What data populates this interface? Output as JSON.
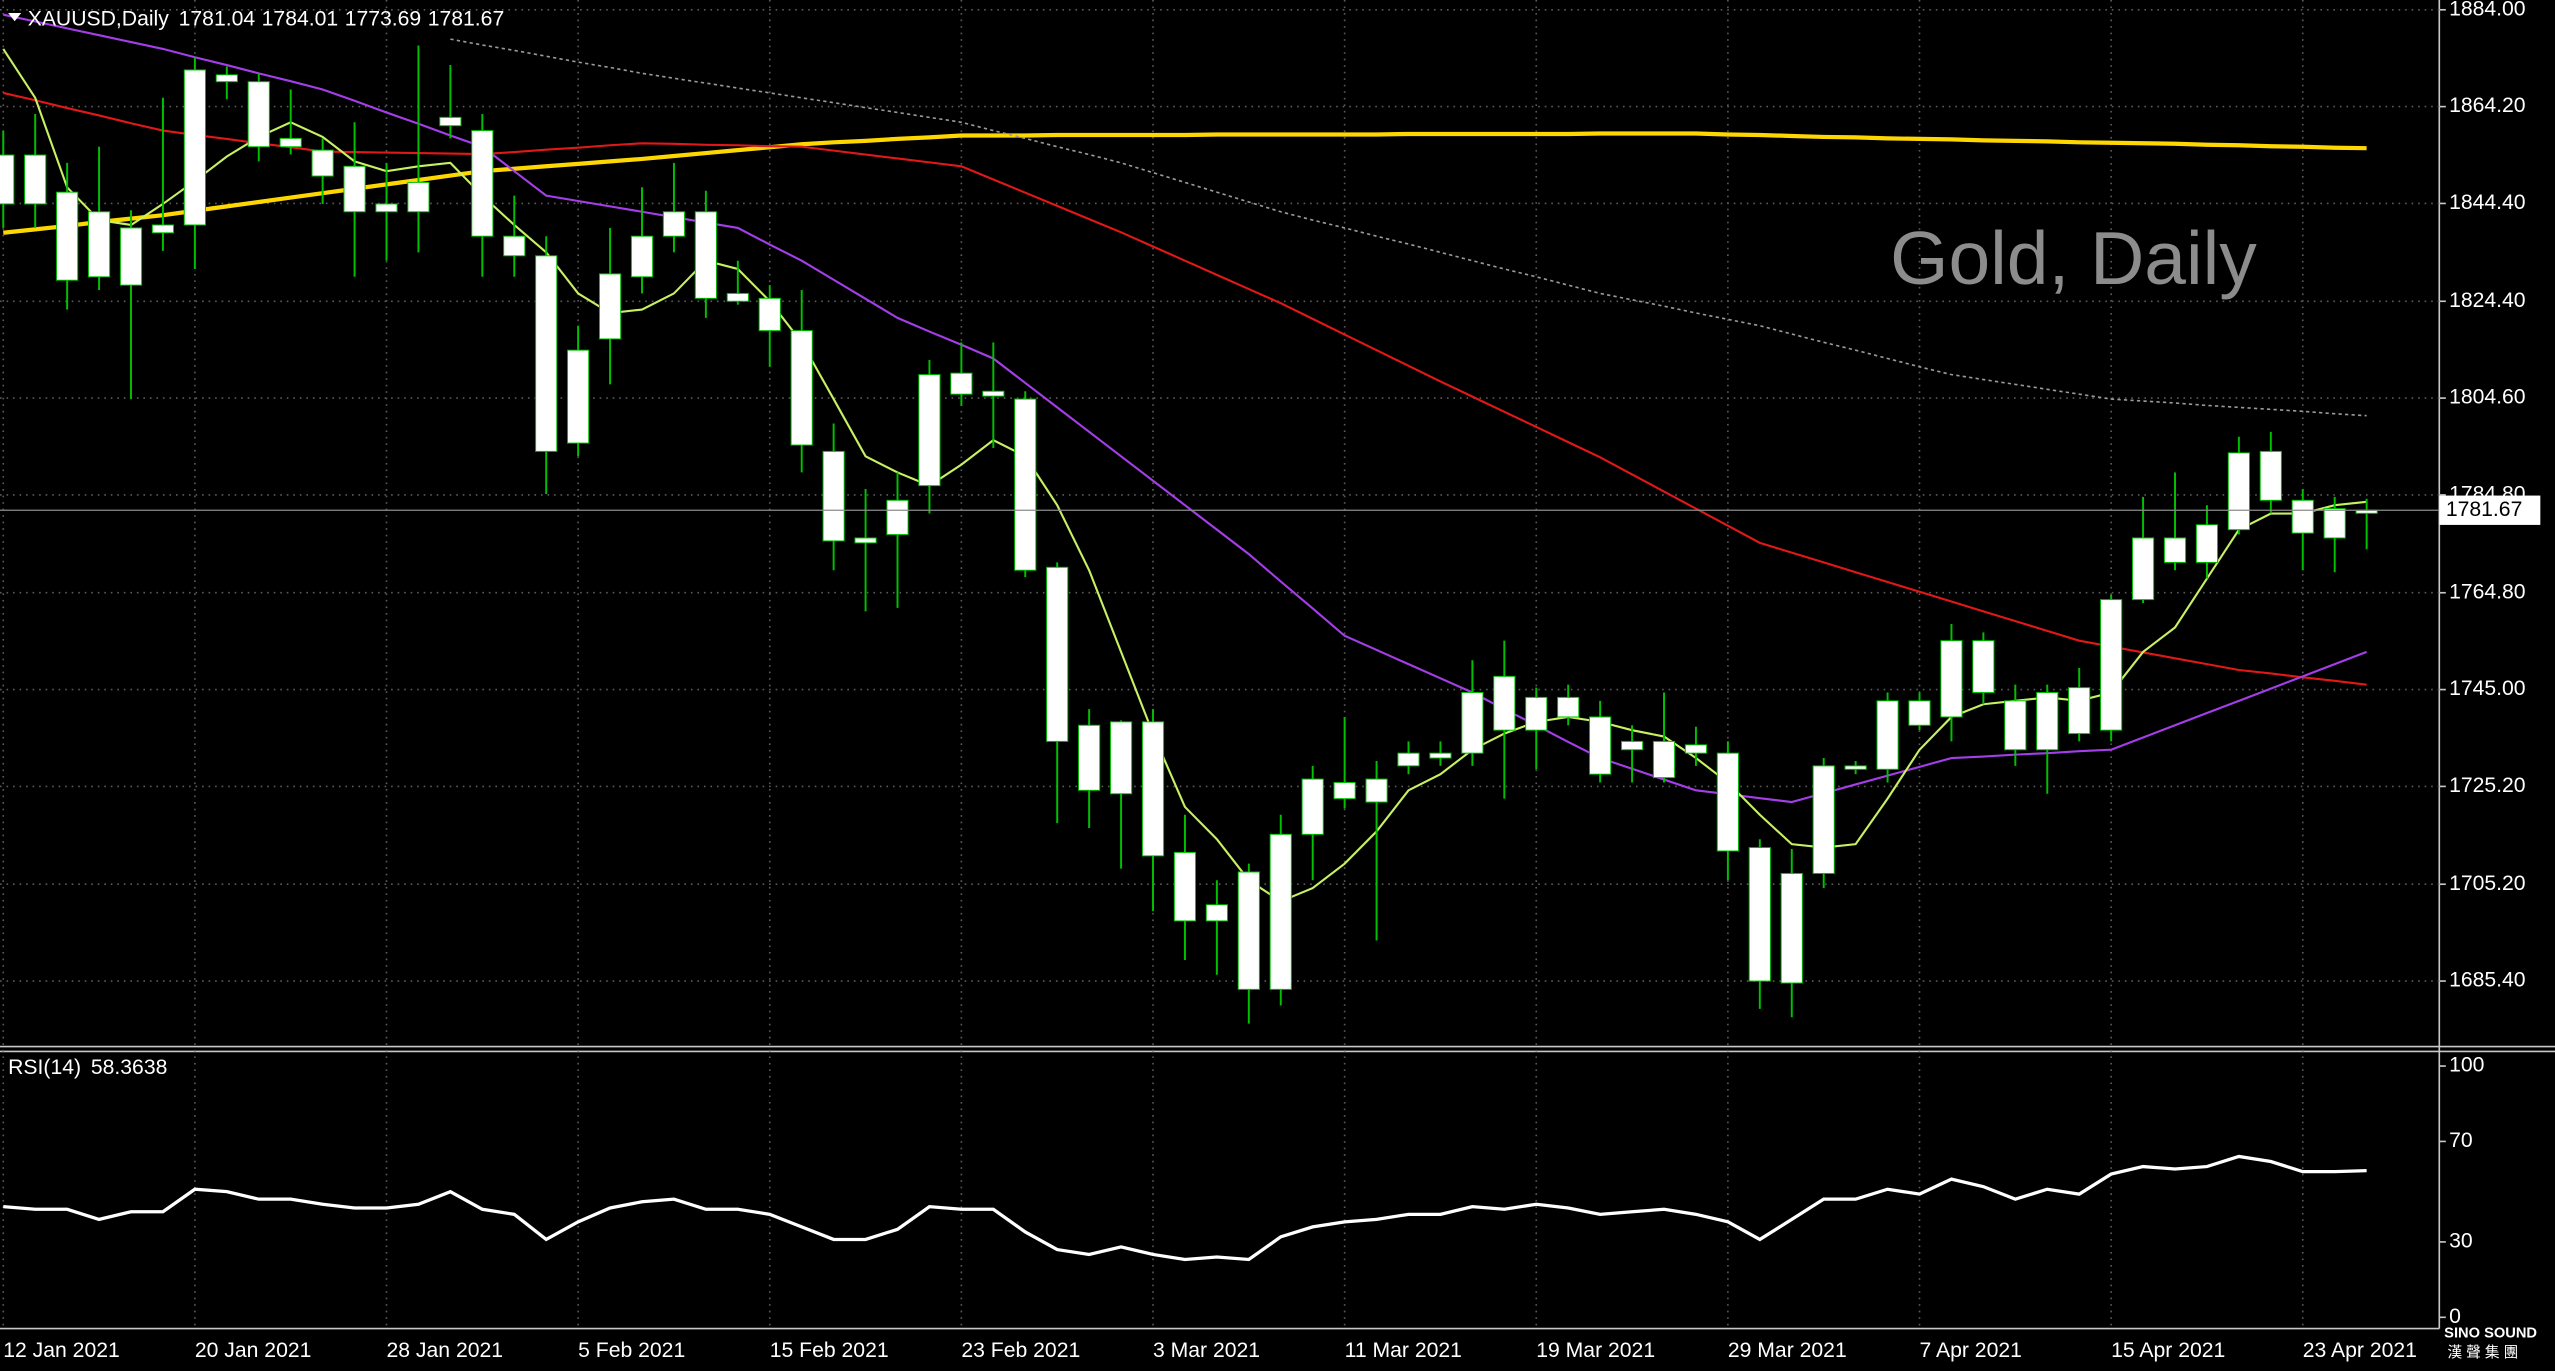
{
  "chart_data": [
    {
      "type": "candlestick",
      "title": "Gold, Daily",
      "symbol": "XAUUSD,Daily",
      "categories": [
        "12 Jan 2021",
        null,
        null,
        null,
        null,
        null,
        "20 Jan 2021",
        null,
        null,
        null,
        null,
        null,
        "28 Jan 2021",
        null,
        null,
        null,
        null,
        null,
        "5 Feb 2021",
        null,
        null,
        null,
        null,
        null,
        "15 Feb 2021",
        null,
        null,
        null,
        null,
        null,
        "23 Feb 2021",
        null,
        null,
        null,
        null,
        null,
        "3 Mar 2021",
        null,
        null,
        null,
        null,
        null,
        "11 Mar 2021",
        null,
        null,
        null,
        null,
        null,
        "19 Mar 2021",
        null,
        null,
        null,
        null,
        null,
        "29 Mar 2021",
        null,
        null,
        null,
        null,
        null,
        "7 Apr 2021",
        null,
        null,
        null,
        null,
        null,
        "15 Apr 2021",
        null,
        null,
        null,
        null,
        null,
        "23 Apr 2021",
        null,
        null
      ],
      "open": [
        1844.3,
        1854.3,
        1846.7,
        1829.4,
        1839.4,
        1838.4,
        1840,
        1869.3,
        1869.3,
        1856,
        1855.3,
        1852,
        1844.3,
        1842.7,
        1860.3,
        1859.3,
        1837.7,
        1833.7,
        1795.4,
        1816.7,
        1829.4,
        1837.7,
        1842.7,
        1826,
        1825,
        1818.4,
        1793.7,
        1775,
        1776.7,
        1786.7,
        1809.7,
        1806,
        1804.4,
        1770,
        1737.7,
        1723.7,
        1738.4,
        1711.7,
        1697.7,
        1707.7,
        1683.7,
        1715.4,
        1726,
        1722,
        1729.4,
        1731,
        1732,
        1747.7,
        1736.7,
        1743.4,
        1739.4,
        1732.7,
        1734.4,
        1732,
        1732,
        1712.7,
        1685,
        1707.4,
        1728.7,
        1728.7,
        1742.7,
        1739.4,
        1755,
        1742.7,
        1732.7,
        1745.4,
        1736.7,
        1763.4,
        1771,
        1771,
        1777.7,
        1793.7,
        1783.7,
        1776,
        1781.04
      ],
      "high": [
        1859.3,
        1862.7,
        1852.7,
        1856,
        1843,
        1866,
        1874.4,
        1872.4,
        1871,
        1867.7,
        1857.7,
        1861,
        1852.7,
        1876.7,
        1872.7,
        1862.7,
        1846,
        1837.7,
        1819.4,
        1839.4,
        1847.7,
        1852.7,
        1847,
        1832.7,
        1827.7,
        1826.7,
        1799.4,
        1786,
        1789.4,
        1812.4,
        1816,
        1816,
        1806,
        1771,
        1741,
        1738.7,
        1741,
        1719.4,
        1706,
        1709.4,
        1719.4,
        1729.4,
        1739.4,
        1730.4,
        1734.4,
        1734.4,
        1751,
        1755,
        1745.4,
        1746,
        1742.7,
        1737.7,
        1744.4,
        1737.4,
        1734.4,
        1714.4,
        1712.4,
        1731,
        1730.4,
        1744.4,
        1744.4,
        1758.4,
        1756.7,
        1746,
        1746,
        1749.4,
        1764.4,
        1784.4,
        1789.4,
        1782.7,
        1796.7,
        1797.7,
        1786,
        1784.4,
        1784.01
      ],
      "low": [
        1839.4,
        1839.4,
        1822.7,
        1826.7,
        1804.4,
        1834.7,
        1831,
        1865.7,
        1853,
        1854.4,
        1844.3,
        1829.4,
        1832.7,
        1834.4,
        1857.7,
        1829.4,
        1829.4,
        1785,
        1792.7,
        1807.4,
        1826,
        1834.4,
        1821,
        1823.7,
        1811,
        1789.4,
        1769.4,
        1761,
        1761.7,
        1781,
        1803,
        1794.4,
        1768,
        1717.7,
        1716.7,
        1708.4,
        1699.7,
        1689.7,
        1686.7,
        1676.7,
        1680.4,
        1706,
        1720.7,
        1693.7,
        1727.7,
        1729.4,
        1729.4,
        1722.7,
        1728.7,
        1737.7,
        1726,
        1726,
        1726,
        1729.4,
        1706,
        1679.7,
        1678,
        1704.4,
        1727.7,
        1726,
        1736.7,
        1734.4,
        1742,
        1729.4,
        1723.7,
        1734.4,
        1734.4,
        1762.7,
        1769.4,
        1767.7,
        1776.7,
        1781,
        1769.4,
        1769,
        1773.69
      ],
      "close": [
        1854.3,
        1844.3,
        1828.7,
        1842.7,
        1827.7,
        1840,
        1871.7,
        1870.7,
        1856,
        1857.7,
        1850,
        1842.7,
        1842.7,
        1848.7,
        1862,
        1837.7,
        1833.7,
        1793.7,
        1814.4,
        1830,
        1837.7,
        1842.7,
        1825,
        1824.4,
        1818.4,
        1795,
        1775.4,
        1776,
        1783.7,
        1809.4,
        1805.4,
        1805,
        1769.4,
        1734.4,
        1724.4,
        1738.4,
        1711,
        1697.7,
        1701,
        1683.7,
        1715.4,
        1726.7,
        1722.7,
        1726.7,
        1732,
        1732,
        1744.4,
        1736.7,
        1743.4,
        1739.4,
        1727.7,
        1734.4,
        1727,
        1733.7,
        1712,
        1685.4,
        1707.4,
        1729.4,
        1729.4,
        1742.7,
        1737.7,
        1755,
        1744.4,
        1732.7,
        1744.4,
        1736,
        1763.4,
        1776,
        1776,
        1778.7,
        1793.4,
        1783.7,
        1777,
        1782,
        1781.67
      ],
      "candle_color": "#ffffff",
      "wick_color": "#00c000",
      "series": [
        {
          "color": "#ffd700",
          "style": "thick",
          "values": [
            1838.4,
            1839.1,
            1839.8,
            1840.6,
            1841.3,
            1842,
            1842.9,
            1843.8,
            1844.7,
            1845.6,
            1846.5,
            1847.4,
            1848.3,
            1849.2,
            1850.1,
            1851,
            1851.5,
            1852,
            1852.5,
            1853,
            1853.5,
            1854.1,
            1854.7,
            1855.3,
            1855.9,
            1856.5,
            1856.9,
            1857.2,
            1857.6,
            1857.9,
            1858.3,
            1858.3,
            1858.3,
            1858.4,
            1858.4,
            1858.4,
            1858.4,
            1858.4,
            1858.5,
            1858.5,
            1858.5,
            1858.5,
            1858.5,
            1858.5,
            1858.6,
            1858.6,
            1858.6,
            1858.6,
            1858.6,
            1858.6,
            1858.7,
            1858.7,
            1858.7,
            1858.7,
            1858.5,
            1858.4,
            1858.2,
            1858,
            1857.9,
            1857.7,
            1857.6,
            1857.5,
            1857.3,
            1857.2,
            1857.1,
            1856.9,
            1856.8,
            1856.7,
            1856.6,
            1856.4,
            1856.3,
            1856.1,
            1856,
            1855.8,
            1855.7
          ]
        },
        {
          "color": "#e01818",
          "style": "thin",
          "values": [
            1867,
            1865.5,
            1863.9,
            1862.4,
            1860.8,
            1859.3,
            1858.4,
            1857.6,
            1856.7,
            1855.9,
            1855,
            1854.9,
            1854.8,
            1854.7,
            1854.6,
            1854.5,
            1854.9,
            1855.4,
            1855.8,
            1856.3,
            1856.7,
            1856.6,
            1856.4,
            1856.3,
            1856.1,
            1856,
            1855.2,
            1854.4,
            1853.6,
            1852.8,
            1852,
            1849.3,
            1846.6,
            1843.9,
            1841.2,
            1838.5,
            1835.6,
            1832.7,
            1829.8,
            1826.9,
            1824,
            1820.8,
            1817.6,
            1814.4,
            1811.2,
            1808,
            1804.9,
            1801.8,
            1798.7,
            1795.6,
            1792.5,
            1789,
            1785.5,
            1782,
            1778.5,
            1775,
            1773,
            1771,
            1769,
            1767,
            1765,
            1763,
            1761,
            1759,
            1757,
            1755,
            1753.8,
            1752.6,
            1751.4,
            1750.2,
            1749,
            1748.3,
            1747.5,
            1746.8,
            1746
          ]
        },
        {
          "color": "#a43ee8",
          "style": "thin",
          "values": [
            1883,
            1881.6,
            1880.2,
            1878.8,
            1877.4,
            1876,
            1874.3,
            1872.7,
            1871,
            1869.4,
            1867.7,
            1865.4,
            1863,
            1860.7,
            1858.3,
            1856,
            1851,
            1846,
            1844.9,
            1843.8,
            1842.7,
            1841.6,
            1840.5,
            1839.4,
            1836,
            1832.7,
            1828.8,
            1824.9,
            1821,
            1818.2,
            1815.5,
            1812.7,
            1807.7,
            1802.7,
            1797.7,
            1792.7,
            1787.7,
            1782.7,
            1777.7,
            1772.7,
            1767.1,
            1761.6,
            1756,
            1753.1,
            1750.2,
            1747.3,
            1744.4,
            1741,
            1737.7,
            1734.3,
            1731,
            1728.8,
            1726.6,
            1724.4,
            1723.6,
            1722.8,
            1722,
            1723.8,
            1725.6,
            1727.4,
            1729.2,
            1731,
            1731.3,
            1731.7,
            1732,
            1732.4,
            1732.7,
            1735.2,
            1737.7,
            1740.2,
            1742.7,
            1745.2,
            1747.7,
            1750.2,
            1752.7
          ]
        },
        {
          "color": "#c8f064",
          "style": "thin",
          "values": [
            1876,
            1866,
            1847.7,
            1841,
            1840,
            1844.3,
            1849,
            1854,
            1858,
            1861,
            1858,
            1853,
            1851,
            1852,
            1852.7,
            1846,
            1840,
            1834.4,
            1826,
            1822,
            1822.7,
            1826,
            1832.7,
            1831,
            1824.4,
            1816,
            1804.4,
            1792.7,
            1789.4,
            1786.7,
            1791,
            1796,
            1792.7,
            1782.7,
            1769.4,
            1752.7,
            1736,
            1721,
            1714.4,
            1706,
            1701.7,
            1704.4,
            1709.4,
            1716,
            1724.4,
            1727.7,
            1732.7,
            1736,
            1738.4,
            1739.4,
            1738.4,
            1736.7,
            1735.4,
            1731,
            1726,
            1719.4,
            1713.4,
            1712.7,
            1713.4,
            1722.7,
            1732.7,
            1739.4,
            1742,
            1742.7,
            1743.4,
            1742.7,
            1744.4,
            1752.7,
            1757.7,
            1767.7,
            1777.7,
            1781,
            1781,
            1782.7,
            1783.4
          ]
        },
        {
          "color": "#9a9a9a",
          "style": "dotted",
          "values": [
            null,
            null,
            null,
            null,
            null,
            null,
            null,
            null,
            null,
            null,
            null,
            null,
            null,
            null,
            1878,
            1876.8,
            1875.7,
            1874.5,
            1873.3,
            1872.2,
            1871,
            1870,
            1869,
            1868,
            1867,
            1866,
            1865,
            1864,
            1863,
            1862,
            1861,
            1859.3,
            1857.7,
            1856,
            1854.4,
            1852.7,
            1850.7,
            1848.7,
            1846.7,
            1844.7,
            1842.7,
            1841,
            1839.4,
            1837.7,
            1836.1,
            1834.4,
            1832.7,
            1831,
            1829.4,
            1827.7,
            1826,
            1824.7,
            1823.4,
            1822,
            1820.7,
            1819.4,
            1817.7,
            1816,
            1814.4,
            1812.7,
            1811,
            1809.4,
            1808.4,
            1807.4,
            1806.4,
            1805.4,
            1804.4,
            1804,
            1803.6,
            1803.1,
            1802.7,
            1802.3,
            1801.9,
            1801.4,
            1801
          ]
        }
      ],
      "ylim": [
        1672,
        1886
      ],
      "yticks": [
        {
          "value": 1884,
          "label": "1884.00"
        },
        {
          "value": 1864.2,
          "label": "1864.20"
        },
        {
          "value": 1844.4,
          "label": "1844.40"
        },
        {
          "value": 1824.4,
          "label": "1824.40"
        },
        {
          "value": 1804.6,
          "label": "1804.60"
        },
        {
          "value": 1784.8,
          "label": "1784.80"
        },
        {
          "value": 1764.8,
          "label": "1764.80"
        },
        {
          "value": 1745,
          "label": "1745.00"
        },
        {
          "value": 1725.2,
          "label": "1725.20"
        },
        {
          "value": 1705.2,
          "label": "1705.20"
        },
        {
          "value": 1685.4,
          "label": "1685.40"
        }
      ],
      "grid": true,
      "logo": [
        "SINO SOUND",
        "漢 聲 集 團"
      ]
    },
    {
      "type": "line",
      "title": "RSI(14)",
      "color": "#ffffff",
      "values": [
        44,
        43,
        43,
        39,
        42,
        42,
        51,
        50,
        47,
        47,
        45,
        43.5,
        43.5,
        45,
        50,
        43,
        41,
        31,
        38,
        43.5,
        46,
        47,
        43,
        43,
        41,
        36,
        31,
        31,
        35,
        44,
        43,
        43,
        34,
        27,
        25,
        28,
        25,
        23,
        24,
        23,
        32,
        36,
        38,
        39,
        41,
        41,
        44,
        43,
        45,
        43.5,
        41,
        42,
        43,
        41,
        38,
        31,
        39,
        47,
        47,
        51,
        49,
        55,
        52,
        47,
        51,
        49,
        57,
        60,
        59,
        60,
        64,
        62,
        58,
        58,
        58.3638
      ],
      "ylim": [
        -4.5,
        105.8
      ],
      "yticks": [
        0,
        30,
        70,
        100
      ]
    }
  ]
}
